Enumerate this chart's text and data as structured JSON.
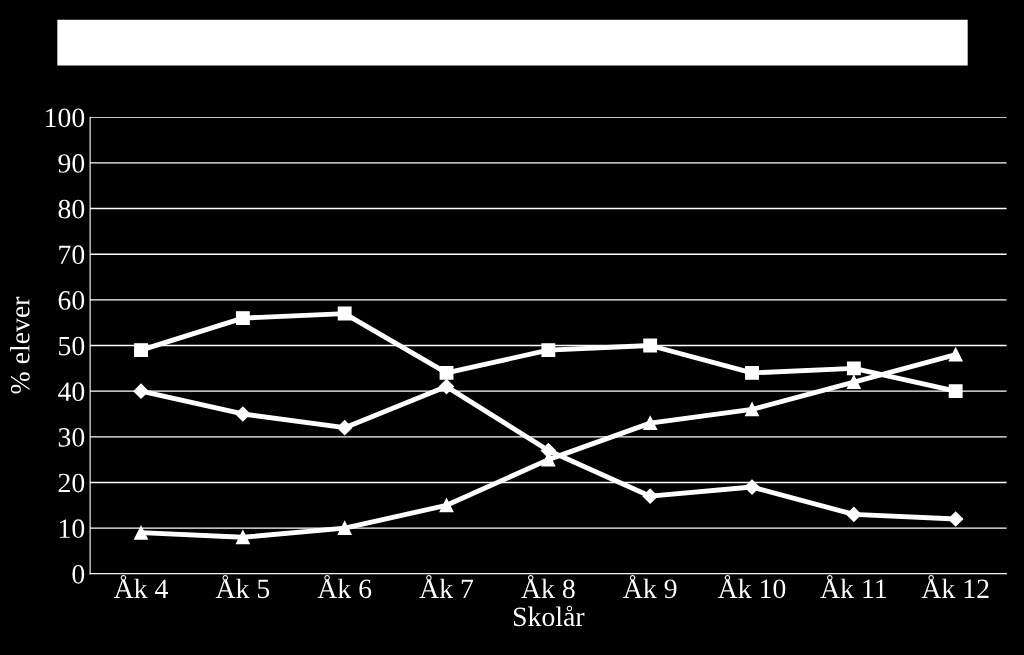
{
  "chart_data": {
    "type": "line",
    "xlabel": "Skolår",
    "ylabel": "% elever",
    "categories": [
      "Åk 4",
      "Åk 5",
      "Åk 6",
      "Åk 7",
      "Åk 8",
      "Åk 9",
      "Åk 10",
      "Åk 11",
      "Åk 12"
    ],
    "series": [
      {
        "color": "#ffffff",
        "marker": "square",
        "values": [
          49,
          56,
          57,
          44,
          49,
          50,
          44,
          45,
          40
        ]
      },
      {
        "color": "#ffffff",
        "marker": "diamond",
        "values": [
          40,
          35,
          32,
          41,
          27,
          17,
          19,
          13,
          12
        ]
      },
      {
        "color": "#ffffff",
        "marker": "triangle",
        "values": [
          9,
          8,
          10,
          15,
          25,
          33,
          36,
          42,
          48
        ]
      }
    ],
    "ylim": [
      0,
      100
    ],
    "yticks": [
      0,
      10,
      20,
      30,
      40,
      50,
      60,
      70,
      80,
      90,
      100
    ],
    "grid": "y",
    "legend": false,
    "line_style": "solid"
  }
}
